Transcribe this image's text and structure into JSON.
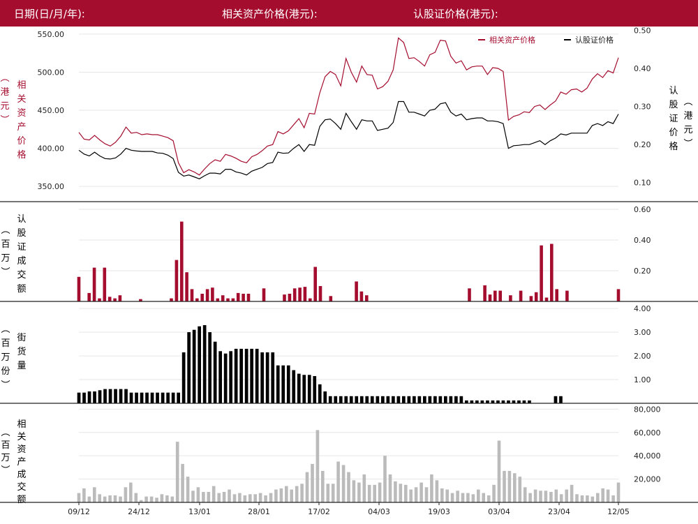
{
  "header": {
    "date_label": "日期(日/月/年):",
    "asset_price_label": "相关资产价格(港元):",
    "warrant_price_label": "认股证价格(港元):"
  },
  "colors": {
    "brand": "#a50d2e",
    "asset": "#a50d2e",
    "warrant": "#000000",
    "stock_volume": "#bbbbbb"
  },
  "x_tick_labels": [
    "09/12",
    "24/12",
    "13/01",
    "28/01",
    "17/02",
    "04/03",
    "19/03",
    "03/04",
    "23/04",
    "12/05"
  ],
  "chart_data": [
    {
      "type": "line",
      "legend_position": "top-right",
      "ylabel_left": [
        "相",
        "关",
        "资",
        "产",
        "价",
        "格",
        "︵",
        "港",
        "元",
        "︶"
      ],
      "ylabel_right": [
        "认",
        "股",
        "证",
        "价",
        "格",
        "︵",
        "港",
        "元",
        "︶"
      ],
      "y_left_ticks": [
        "550.00",
        "500.00",
        "450.00",
        "400.00",
        "350.00"
      ],
      "y_left_range": [
        330,
        560
      ],
      "y_right_ticks": [
        "0.50",
        "0.40",
        "0.30",
        "0.20",
        "0.10"
      ],
      "y_right_range": [
        0.05,
        0.51
      ],
      "series": [
        {
          "name": "相关资产价格",
          "axis": "left",
          "values": [
            421,
            412,
            411,
            417,
            411,
            406,
            403,
            408,
            416,
            428,
            420,
            421,
            418,
            419,
            418,
            418,
            416,
            414,
            410,
            381,
            368,
            372,
            369,
            365,
            373,
            380,
            385,
            383,
            392,
            390,
            387,
            383,
            381,
            389,
            392,
            397,
            403,
            405,
            422,
            419,
            423,
            431,
            439,
            427,
            446,
            445,
            473,
            494,
            501,
            497,
            482,
            518,
            500,
            487,
            508,
            497,
            496,
            478,
            481,
            488,
            503,
            545,
            539,
            518,
            519,
            514,
            508,
            523,
            526,
            542,
            541,
            521,
            512,
            515,
            503,
            507,
            508,
            508,
            497,
            506,
            505,
            501,
            437,
            442,
            444,
            448,
            447,
            455,
            457,
            451,
            457,
            462,
            474,
            471,
            477,
            478,
            474,
            479,
            491,
            498,
            493,
            502,
            499,
            519
          ]
        },
        {
          "name": "认股证价格",
          "axis": "right",
          "values": [
            0.185,
            0.175,
            0.17,
            0.18,
            0.17,
            0.163,
            0.162,
            0.165,
            0.175,
            0.19,
            0.185,
            0.183,
            0.182,
            0.182,
            0.182,
            0.178,
            0.177,
            0.172,
            0.163,
            0.127,
            0.117,
            0.12,
            0.115,
            0.11,
            0.118,
            0.125,
            0.125,
            0.123,
            0.135,
            0.135,
            0.128,
            0.125,
            0.12,
            0.13,
            0.135,
            0.14,
            0.15,
            0.153,
            0.18,
            0.177,
            0.178,
            0.19,
            0.2,
            0.182,
            0.2,
            0.198,
            0.248,
            0.265,
            0.267,
            0.255,
            0.24,
            0.282,
            0.26,
            0.24,
            0.265,
            0.262,
            0.262,
            0.237,
            0.24,
            0.243,
            0.258,
            0.313,
            0.313,
            0.285,
            0.285,
            0.28,
            0.275,
            0.29,
            0.293,
            0.307,
            0.31,
            0.285,
            0.275,
            0.28,
            0.265,
            0.268,
            0.27,
            0.27,
            0.262,
            0.262,
            0.26,
            0.255,
            0.19,
            0.197,
            0.198,
            0.2,
            0.2,
            0.205,
            0.21,
            0.2,
            0.21,
            0.217,
            0.228,
            0.225,
            0.23,
            0.23,
            0.23,
            0.23,
            0.25,
            0.255,
            0.25,
            0.26,
            0.255,
            0.28
          ]
        }
      ]
    },
    {
      "type": "bar",
      "ylabel": [
        "认",
        "股",
        "证",
        "成",
        "交",
        "额",
        "︵",
        "百",
        "万",
        "︶"
      ],
      "y_ticks": [
        "0.60",
        "0.40",
        "0.20"
      ],
      "y_range": [
        0,
        0.65
      ],
      "series": [
        {
          "name": "认股证成交额",
          "values": [
            0.16,
            0,
            0.055,
            0.22,
            0.02,
            0.22,
            0.03,
            0.02,
            0.04,
            0,
            0,
            0,
            0.015,
            0,
            0,
            0,
            0,
            0,
            0.02,
            0.27,
            0.52,
            0.19,
            0.08,
            0.02,
            0.05,
            0.08,
            0.09,
            0.02,
            0.04,
            0.02,
            0.02,
            0.055,
            0.05,
            0.05,
            0,
            0,
            0.085,
            0,
            0,
            0,
            0.045,
            0.05,
            0.085,
            0.09,
            0.095,
            0.02,
            0.225,
            0.1,
            0,
            0.035,
            0,
            0,
            0,
            0,
            0.13,
            0.065,
            0.04,
            0,
            0,
            0,
            0,
            0,
            0,
            0,
            0,
            0,
            0,
            0,
            0,
            0,
            0,
            0,
            0,
            0,
            0,
            0,
            0.085,
            0,
            0,
            0.105,
            0.045,
            0.07,
            0.07,
            0,
            0.04,
            0,
            0.07,
            0,
            0.035,
            0.06,
            0.365,
            0.025,
            0.375,
            0.08,
            0,
            0.07,
            0,
            0,
            0,
            0,
            0,
            0,
            0,
            0,
            0,
            0.08
          ]
        }
      ]
    },
    {
      "type": "bar",
      "ylabel": [
        "街",
        "货",
        "量",
        "︵",
        "百",
        "万",
        "份",
        "︶"
      ],
      "y_ticks": [
        "4.00",
        "3.00",
        "2.00",
        "1.00"
      ],
      "y_range": [
        0,
        4.3
      ],
      "series": [
        {
          "name": "街货量",
          "values": [
            0.45,
            0.45,
            0.5,
            0.5,
            0.55,
            0.6,
            0.6,
            0.6,
            0.6,
            0.6,
            0.45,
            0.45,
            0.45,
            0.45,
            0.45,
            0.45,
            0.45,
            0.45,
            0.45,
            0.45,
            2.15,
            3.0,
            3.1,
            3.25,
            3.3,
            3.0,
            2.6,
            2.2,
            2.1,
            2.2,
            2.3,
            2.3,
            2.3,
            2.3,
            2.3,
            2.15,
            2.15,
            2.15,
            1.6,
            1.6,
            1.6,
            1.4,
            1.25,
            1.2,
            1.2,
            1.15,
            0.8,
            0.5,
            0.3,
            0.3,
            0.3,
            0.3,
            0.3,
            0.3,
            0.3,
            0.3,
            0.3,
            0.3,
            0.3,
            0.3,
            0.3,
            0.3,
            0.3,
            0.3,
            0.3,
            0.3,
            0.3,
            0.3,
            0.3,
            0.3,
            0.3,
            0.3,
            0.3,
            0.3,
            0.12,
            0.12,
            0.12,
            0.12,
            0.12,
            0.12,
            0.12,
            0.12,
            0.12,
            0.12,
            0.12,
            0.12,
            0.12,
            0,
            0,
            0,
            0,
            0.3,
            0.3,
            0,
            0,
            0,
            0,
            0,
            0,
            0,
            0,
            0,
            0,
            0
          ]
        }
      ]
    },
    {
      "type": "bar",
      "ylabel": [
        "相",
        "关",
        "资",
        "产",
        "成",
        "交",
        "额",
        "︵",
        "百",
        "万",
        "︶"
      ],
      "y_ticks": [
        "80,000",
        "60,000",
        "40,000",
        "20,000"
      ],
      "y_range": [
        0,
        85000
      ],
      "series": [
        {
          "name": "相关资产成交额",
          "values": [
            8000,
            12000,
            5000,
            13000,
            7000,
            5000,
            6000,
            6000,
            5000,
            13000,
            17000,
            8000,
            2000,
            5000,
            5000,
            4000,
            7000,
            6000,
            5000,
            52000,
            33000,
            22000,
            10000,
            13000,
            9000,
            9000,
            14000,
            8000,
            9000,
            11000,
            7000,
            8000,
            6000,
            7000,
            7000,
            8000,
            6000,
            8000,
            11000,
            12000,
            14000,
            11000,
            14000,
            16000,
            26000,
            33000,
            62000,
            27000,
            16000,
            16000,
            35000,
            32000,
            26000,
            19000,
            17000,
            24000,
            15000,
            15000,
            17000,
            40000,
            24000,
            18000,
            16000,
            15000,
            11000,
            13000,
            17000,
            13000,
            24000,
            19000,
            12000,
            11000,
            8000,
            10000,
            8000,
            8000,
            7000,
            11000,
            8000,
            6000,
            15000,
            53000,
            27000,
            27000,
            25000,
            22000,
            13000,
            8000,
            11000,
            10000,
            10000,
            9000,
            11000,
            7000,
            11000,
            15000,
            7000,
            6000,
            6000,
            5000,
            8000,
            12000,
            11000,
            6000,
            17000
          ]
        }
      ]
    }
  ]
}
